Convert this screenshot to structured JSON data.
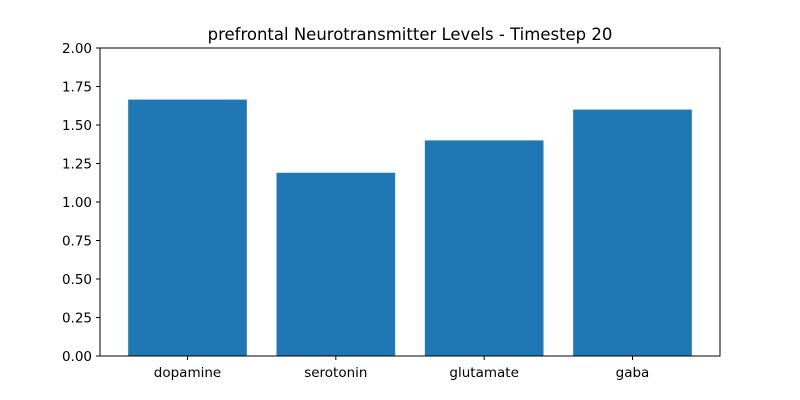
{
  "chart_data": {
    "type": "bar",
    "title": "prefrontal Neurotransmitter Levels - Timestep 20",
    "xlabel": "",
    "ylabel": "",
    "categories": [
      "dopamine",
      "serotonin",
      "glutamate",
      "gaba"
    ],
    "values": [
      1.665,
      1.19,
      1.4,
      1.6
    ],
    "ylim": [
      0,
      2.0
    ],
    "yticks": [
      "0.00",
      "0.25",
      "0.50",
      "0.75",
      "1.00",
      "1.25",
      "1.50",
      "1.75",
      "2.00"
    ],
    "grid": false,
    "legend": "none",
    "colors": {
      "bar": "#1f77b4"
    }
  }
}
